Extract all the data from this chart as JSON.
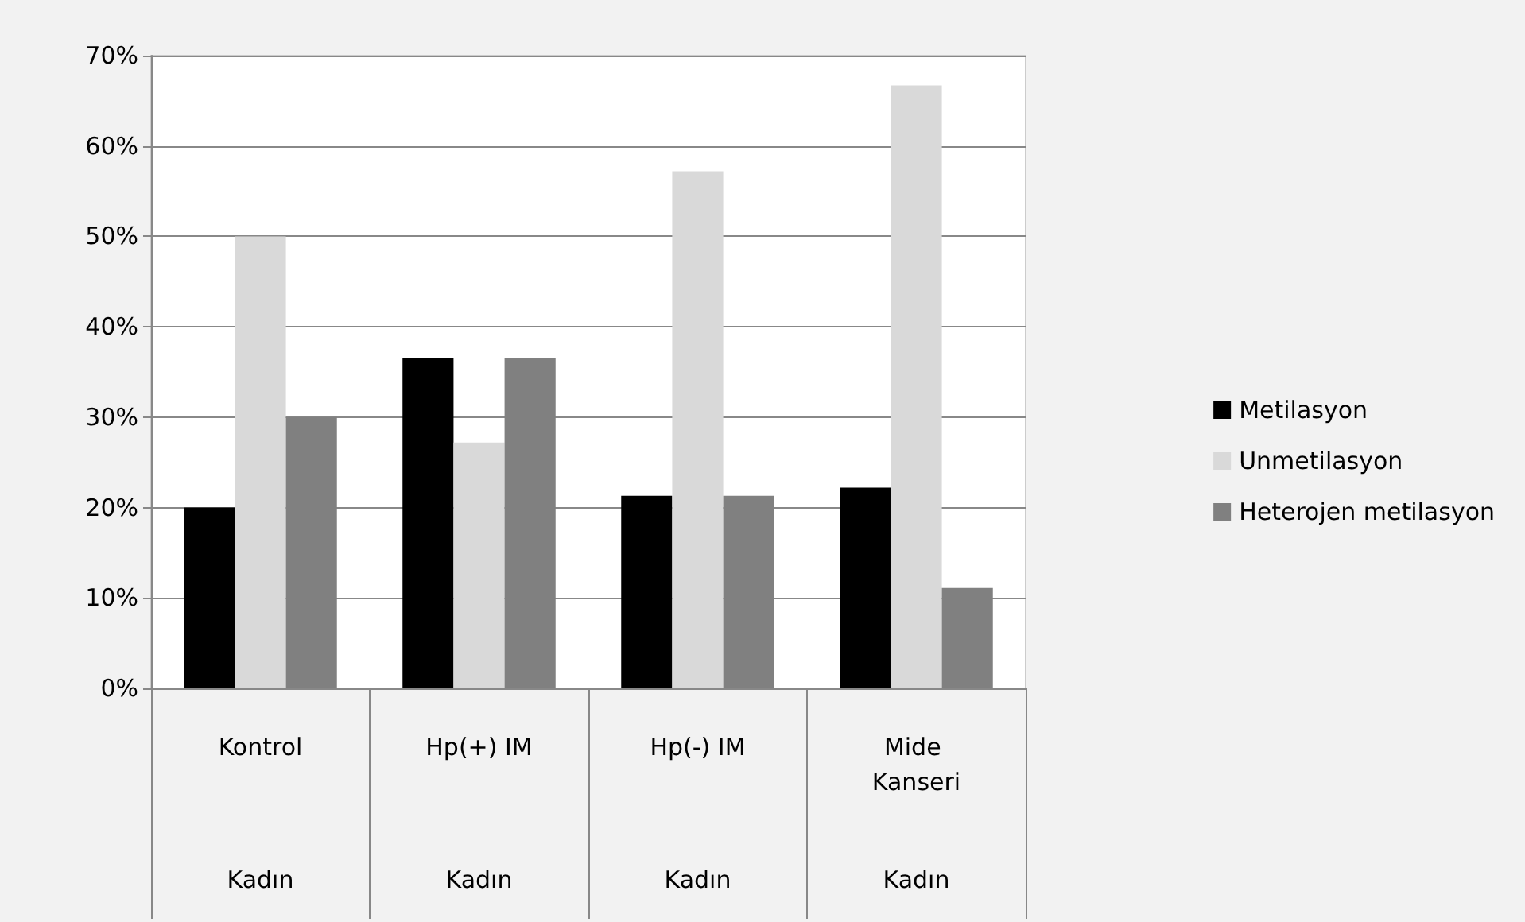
{
  "chart_data": {
    "type": "bar",
    "categories": [
      "Kontrol",
      "Hp(+) IM",
      "Hp(-) IM",
      "Mide Kanseri"
    ],
    "annotations": [
      "Kadın",
      "Kadın",
      "Kadın",
      "Kadın"
    ],
    "series": [
      {
        "name": "Metilasyon",
        "color": "#000000",
        "values": [
          20,
          36.5,
          21.3,
          22.2
        ]
      },
      {
        "name": "Unmetilasyon",
        "color": "#d9d9d9",
        "values": [
          50,
          27.2,
          57.2,
          66.7
        ]
      },
      {
        "name": "Heterojen metilasyon",
        "color": "#808080",
        "values": [
          30,
          36.5,
          21.3,
          11.1
        ]
      }
    ],
    "ylim": [
      0,
      70
    ],
    "yticks": [
      {
        "value": 0,
        "label": "0%"
      },
      {
        "value": 10,
        "label": "10%"
      },
      {
        "value": 20,
        "label": "20%"
      },
      {
        "value": 30,
        "label": "30%"
      },
      {
        "value": 40,
        "label": "40%"
      },
      {
        "value": 50,
        "label": "50%"
      },
      {
        "value": 60,
        "label": "60%"
      },
      {
        "value": 70,
        "label": "70%"
      }
    ],
    "grid": "y",
    "legend": "right"
  }
}
